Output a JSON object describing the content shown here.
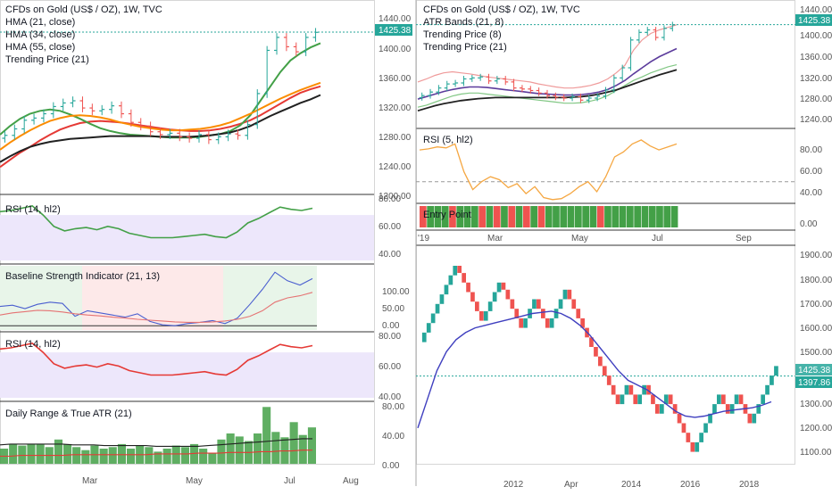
{
  "colors": {
    "up": "#26a69a",
    "down": "#ef5350",
    "hma21": "#e53935",
    "hma34": "#43a047",
    "hma55": "#fb8c00",
    "trending": "#212121",
    "rsi_green": "#43a047",
    "rsi_red": "#e53935",
    "rsi_orange": "#f5a742",
    "price_tag": "#26a69a",
    "blue_line": "#4a5ecf"
  },
  "left": {
    "main": {
      "title": "CFDs on Gold (US$ / OZ), 1W, TVC",
      "legend": [
        "HMA (21, close)",
        "HMA (34, close)",
        "HMA (55, close)",
        "Trending Price (21)"
      ],
      "price_tag": "1425.38",
      "yticks": [
        "1440.00",
        "1400.00",
        "1360.00",
        "1320.00",
        "1280.00",
        "1240.00",
        "1200.00"
      ]
    },
    "rsi1": {
      "label": "RSI (14, hl2)",
      "yticks": [
        "80.00",
        "60.00",
        "40.00"
      ]
    },
    "baseline": {
      "label": "Baseline Strength Indicator (21, 13)",
      "yticks": [
        "100.00",
        "50.00",
        "0.00"
      ]
    },
    "rsi2": {
      "label": "RSI (14, hl2)",
      "yticks": [
        "80.00",
        "60.00",
        "40.00"
      ]
    },
    "atr": {
      "label": "Daily Range & True ATR (21)",
      "yticks": [
        "80.00",
        "40.00",
        "0.00"
      ]
    },
    "xticks": [
      "Mar",
      "May",
      "Jul",
      "Aug"
    ]
  },
  "right_top": {
    "main": {
      "title": "CFDs on Gold (US$ / OZ), 1W, TVC",
      "legend": [
        "ATR Bands (21, 8)",
        "Trending Price (8)",
        "Trending Price (21)"
      ],
      "price_tag": "1425.38",
      "yticks": [
        "1440.00",
        "1400.00",
        "1360.00",
        "1320.00",
        "1280.00",
        "1240.00"
      ]
    },
    "rsi": {
      "label": "RSI (5, hl2)",
      "yticks": [
        "80.00",
        "60.00",
        "40.00"
      ]
    },
    "entry": {
      "label": "Entry Point",
      "ytick": "0.00"
    },
    "xticks": [
      "'19",
      "Mar",
      "May",
      "Jul",
      "Sep"
    ]
  },
  "right_bottom": {
    "price_tag": "1425.38",
    "price_tag2": "1397.86",
    "yticks": [
      "1900.00",
      "1800.00",
      "1700.00",
      "1600.00",
      "1500.00",
      "1400.00",
      "1300.00",
      "1200.00",
      "1100.00"
    ],
    "xticks": [
      "2012",
      "Apr",
      "2014",
      "2016",
      "2018"
    ]
  },
  "chart_data": [
    {
      "type": "candlestick",
      "title": "CFDs on Gold (US$ / OZ), 1W, TVC",
      "ylim": [
        1200,
        1460
      ],
      "weekly_close": [
        1282,
        1291,
        1303,
        1306,
        1312,
        1322,
        1327,
        1330,
        1320,
        1316,
        1318,
        1323,
        1312,
        1300,
        1295,
        1287,
        1283,
        1285,
        1280,
        1278,
        1283,
        1276,
        1280,
        1284,
        1282,
        1297,
        1340,
        1400,
        1418,
        1405,
        1398,
        1418,
        1425
      ],
      "series": [
        {
          "name": "HMA (21, close)",
          "values": [
            1238,
            1248,
            1258,
            1266,
            1275,
            1283,
            1290,
            1295,
            1299,
            1301,
            1302,
            1301,
            1300,
            1298,
            1296,
            1294,
            1292,
            1290,
            1289,
            1288,
            1288,
            1289,
            1291,
            1294,
            1298,
            1303,
            1310,
            1318,
            1326,
            1334,
            1341,
            1346,
            1350
          ]
        },
        {
          "name": "HMA (34, close)",
          "values": [
            1283,
            1295,
            1305,
            1312,
            1316,
            1318,
            1316,
            1311,
            1305,
            1298,
            1292,
            1288,
            1285,
            1283,
            1282,
            1281,
            1280,
            1279,
            1279,
            1279,
            1280,
            1282,
            1284,
            1288,
            1296,
            1310,
            1330,
            1350,
            1370,
            1386,
            1396,
            1404,
            1410
          ]
        },
        {
          "name": "HMA (55, close)",
          "values": [
            1262,
            1272,
            1281,
            1289,
            1296,
            1302,
            1306,
            1309,
            1310,
            1309,
            1307,
            1304,
            1300,
            1297,
            1294,
            1292,
            1290,
            1289,
            1289,
            1290,
            1291,
            1293,
            1296,
            1300,
            1306,
            1312,
            1319,
            1326,
            1333,
            1339,
            1345,
            1350,
            1355
          ]
        },
        {
          "name": "Trending Price (21)",
          "values": [
            1245,
            1253,
            1260,
            1266,
            1270,
            1273,
            1275,
            1277,
            1278,
            1279,
            1280,
            1281,
            1281,
            1281,
            1281,
            1281,
            1280,
            1280,
            1280,
            1280,
            1281,
            1282,
            1284,
            1286,
            1290,
            1295,
            1302,
            1309,
            1315,
            1321,
            1327,
            1332,
            1338
          ]
        }
      ]
    },
    {
      "type": "line",
      "title": "RSI (14, hl2)",
      "ylim": [
        30,
        85
      ],
      "values": [
        73,
        74,
        76,
        78,
        70,
        60,
        56,
        58,
        59,
        57,
        60,
        58,
        54,
        52,
        50,
        50,
        50,
        51,
        52,
        53,
        51,
        50,
        55,
        63,
        67,
        72,
        77,
        75,
        74,
        76
      ]
    },
    {
      "type": "line",
      "title": "Baseline Strength Indicator (21, 13)",
      "ylim": [
        -10,
        140
      ],
      "series": [
        {
          "name": "fast",
          "values": [
            45,
            48,
            40,
            50,
            55,
            52,
            22,
            35,
            30,
            25,
            20,
            28,
            10,
            2,
            0,
            5,
            8,
            12,
            5,
            18,
            50,
            85,
            125,
            105,
            95,
            110
          ]
        },
        {
          "name": "slow",
          "values": [
            25,
            30,
            33,
            36,
            35,
            32,
            28,
            25,
            23,
            20,
            18,
            15,
            13,
            11,
            9,
            8,
            8,
            9,
            11,
            15,
            22,
            35,
            55,
            65,
            70,
            78
          ]
        }
      ]
    },
    {
      "type": "line",
      "title": "RSI (14, hl2)",
      "ylim": [
        30,
        85
      ],
      "values": [
        73,
        74,
        76,
        78,
        70,
        60,
        56,
        58,
        59,
        57,
        60,
        58,
        54,
        52,
        50,
        50,
        50,
        51,
        52,
        53,
        51,
        50,
        55,
        63,
        67,
        72,
        77,
        75,
        74,
        76
      ]
    },
    {
      "type": "bar",
      "title": "Daily Range & True ATR (21)",
      "ylim": [
        0,
        80
      ],
      "values": [
        20,
        26,
        24,
        26,
        26,
        22,
        32,
        26,
        22,
        18,
        24,
        20,
        22,
        26,
        20,
        24,
        22,
        16,
        20,
        24,
        22,
        26,
        20,
        14,
        32,
        40,
        36,
        30,
        40,
        75,
        42,
        35,
        55,
        38,
        48
      ],
      "series": [
        {
          "name": "atr_black",
          "values": [
            25,
            26,
            26,
            26,
            26,
            26,
            26,
            25,
            25,
            25,
            24,
            24,
            24,
            24,
            24,
            23,
            23,
            23,
            23,
            23,
            24,
            25,
            26,
            27,
            28,
            29,
            30,
            31,
            32,
            33,
            33
          ]
        },
        {
          "name": "atr_red",
          "values": [
            10,
            10,
            11,
            11,
            11,
            11,
            11,
            12,
            12,
            12,
            12,
            12,
            12,
            12,
            12,
            13,
            13,
            13,
            13,
            14,
            14,
            14,
            15,
            15,
            15,
            16,
            16,
            17,
            17,
            18,
            18
          ]
        }
      ]
    },
    {
      "type": "candlestick",
      "title": "CFDs on Gold (US$ / OZ), 1W, TVC",
      "ylim": [
        1220,
        1460
      ],
      "weekly_close": [
        1285,
        1292,
        1300,
        1308,
        1310,
        1318,
        1320,
        1322,
        1314,
        1318,
        1312,
        1300,
        1298,
        1295,
        1290,
        1285,
        1282,
        1280,
        1283,
        1276,
        1280,
        1284,
        1296,
        1320,
        1340,
        1395,
        1410,
        1415,
        1400,
        1418,
        1425
      ],
      "series": [
        {
          "name": "ATR upper",
          "values": [
            1312,
            1318,
            1325,
            1330,
            1332,
            1330,
            1328,
            1325,
            1322,
            1320,
            1318,
            1316,
            1314,
            1312,
            1308,
            1305,
            1302,
            1300,
            1300,
            1302,
            1305,
            1310,
            1318,
            1330,
            1345,
            1375,
            1395,
            1408,
            1415,
            1420,
            1425
          ]
        },
        {
          "name": "ATR lower",
          "values": [
            1262,
            1266,
            1272,
            1278,
            1284,
            1288,
            1290,
            1290,
            1288,
            1286,
            1284,
            1282,
            1280,
            1278,
            1276,
            1274,
            1272,
            1270,
            1270,
            1271,
            1274,
            1278,
            1285,
            1295,
            1305,
            1315,
            1322,
            1330,
            1336,
            1342,
            1346
          ]
        },
        {
          "name": "Trending Price (8)",
          "values": [
            1278,
            1283,
            1288,
            1293,
            1297,
            1300,
            1302,
            1302,
            1301,
            1299,
            1297,
            1295,
            1293,
            1291,
            1289,
            1288,
            1287,
            1286,
            1286,
            1287,
            1289,
            1292,
            1297,
            1305,
            1315,
            1328,
            1340,
            1352,
            1362,
            1370,
            1378
          ]
        },
        {
          "name": "Trending Price (21)",
          "values": [
            1255,
            1260,
            1265,
            1269,
            1272,
            1275,
            1277,
            1279,
            1280,
            1281,
            1281,
            1281,
            1281,
            1281,
            1281,
            1281,
            1281,
            1281,
            1282,
            1283,
            1285,
            1288,
            1292,
            1296,
            1302,
            1308,
            1314,
            1320,
            1326,
            1331,
            1336
          ]
        }
      ]
    },
    {
      "type": "line",
      "title": "RSI (5, hl2)",
      "ylim": [
        30,
        100
      ],
      "values": [
        82,
        83,
        85,
        84,
        88,
        60,
        42,
        50,
        55,
        52,
        44,
        48,
        38,
        45,
        34,
        32,
        33,
        38,
        45,
        50,
        40,
        55,
        75,
        80,
        88,
        92,
        86,
        82,
        85,
        88
      ]
    },
    {
      "type": "bar",
      "title": "Entry Point",
      "values": [
        "r",
        "g",
        "g",
        "g",
        "r",
        "g",
        "g",
        "g",
        "r",
        "g",
        "r",
        "g",
        "r",
        "g",
        "r",
        "g",
        "r",
        "g",
        "g",
        "g",
        "g",
        "g",
        "g",
        "g",
        "r",
        "g",
        "g",
        "g",
        "g",
        "g",
        "g",
        "g",
        "g",
        "g",
        "g"
      ]
    },
    {
      "type": "renko",
      "ylim": [
        1030,
        1920
      ],
      "values": [
        1540,
        1580,
        1620,
        1660,
        1700,
        1740,
        1780,
        1820,
        1860,
        1830,
        1790,
        1750,
        1710,
        1670,
        1630,
        1670,
        1710,
        1750,
        1790,
        1760,
        1720,
        1680,
        1640,
        1600,
        1640,
        1680,
        1720,
        1680,
        1640,
        1600,
        1640,
        1680,
        1720,
        1760,
        1720,
        1680,
        1640,
        1600,
        1560,
        1520,
        1480,
        1440,
        1400,
        1360,
        1320,
        1280,
        1320,
        1360,
        1320,
        1280,
        1320,
        1360,
        1320,
        1280,
        1240,
        1280,
        1320,
        1280,
        1240,
        1200,
        1160,
        1120,
        1080,
        1120,
        1160,
        1200,
        1240,
        1280,
        1320,
        1280,
        1240,
        1280,
        1320,
        1280,
        1240,
        1200,
        1240,
        1280,
        1320,
        1360,
        1400,
        1440
      ],
      "series": [
        {
          "name": "blue",
          "values": [
            1180,
            1300,
            1420,
            1500,
            1550,
            1580,
            1600,
            1610,
            1620,
            1630,
            1640,
            1650,
            1660,
            1665,
            1670,
            1660,
            1640,
            1610,
            1570,
            1520,
            1470,
            1420,
            1380,
            1360,
            1340,
            1310,
            1280,
            1250,
            1230,
            1225,
            1230,
            1240,
            1250,
            1255,
            1260,
            1265,
            1275,
            1290
          ]
        }
      ]
    }
  ]
}
